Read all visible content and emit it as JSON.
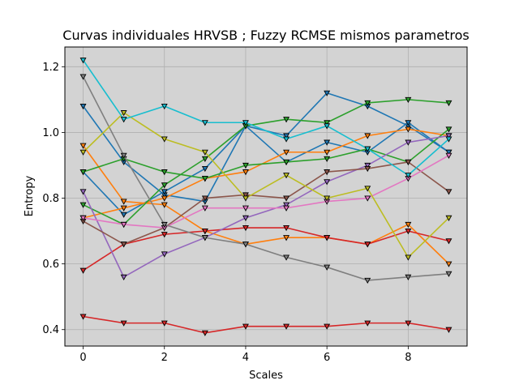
{
  "chart_data": {
    "type": "line",
    "title": "Curvas individuales HRVSB ; Fuzzy RCMSE mismos parametros",
    "xlabel": "Scales",
    "ylabel": "Entropy",
    "x": [
      0,
      1,
      2,
      3,
      4,
      5,
      6,
      7,
      8,
      9
    ],
    "xlim": [
      -0.45,
      9.45
    ],
    "ylim": [
      0.35,
      1.26
    ],
    "xticks": [
      0,
      2,
      4,
      6,
      8
    ],
    "yticks": [
      0.4,
      0.6,
      0.8,
      1.0,
      1.2
    ],
    "grid": true,
    "plot_background": "#d3d3d3",
    "marker": "triangle-down",
    "series": [
      {
        "color": "#1f77b4",
        "values": [
          1.08,
          0.91,
          0.81,
          0.79,
          1.02,
          0.99,
          1.12,
          1.08,
          1.02,
          0.94
        ]
      },
      {
        "color": "#1f77b4",
        "values": [
          0.88,
          0.75,
          0.82,
          0.89,
          1.02,
          0.91,
          0.97,
          0.94,
          1.03,
          0.94
        ]
      },
      {
        "color": "#ff7f0e",
        "values": [
          0.96,
          0.79,
          0.78,
          0.7,
          0.66,
          0.68,
          0.68,
          0.66,
          0.72,
          0.6
        ]
      },
      {
        "color": "#ff7f0e",
        "values": [
          0.74,
          0.77,
          0.8,
          0.86,
          0.88,
          0.94,
          0.94,
          0.99,
          1.01,
          0.99
        ]
      },
      {
        "color": "#2ca02c",
        "values": [
          0.88,
          0.92,
          0.88,
          0.86,
          0.9,
          0.91,
          0.92,
          0.95,
          0.91,
          1.01
        ]
      },
      {
        "color": "#2ca02c",
        "values": [
          0.78,
          0.72,
          0.84,
          0.92,
          1.02,
          1.04,
          1.03,
          1.09,
          1.1,
          1.09
        ]
      },
      {
        "color": "#d62728",
        "values": [
          0.58,
          0.66,
          0.69,
          0.7,
          0.71,
          0.71,
          0.68,
          0.66,
          0.7,
          0.67
        ]
      },
      {
        "color": "#d62728",
        "values": [
          0.44,
          0.42,
          0.42,
          0.39,
          0.41,
          0.41,
          0.41,
          0.42,
          0.42,
          0.4
        ]
      },
      {
        "color": "#9467bd",
        "values": [
          0.82,
          0.56,
          0.63,
          0.68,
          0.74,
          0.78,
          0.85,
          0.9,
          0.97,
          0.99
        ]
      },
      {
        "color": "#8c564b",
        "values": [
          0.73,
          0.66,
          0.71,
          0.8,
          0.81,
          0.8,
          0.88,
          0.89,
          0.91,
          0.82
        ]
      },
      {
        "color": "#e377c2",
        "values": [
          0.74,
          0.72,
          0.71,
          0.77,
          0.77,
          0.77,
          0.79,
          0.8,
          0.86,
          0.93
        ]
      },
      {
        "color": "#7f7f7f",
        "values": [
          1.17,
          0.93,
          0.72,
          0.68,
          0.66,
          0.62,
          0.59,
          0.55,
          0.56,
          0.57
        ]
      },
      {
        "color": "#bcbd22",
        "values": [
          0.94,
          1.06,
          0.98,
          0.94,
          0.8,
          0.87,
          0.8,
          0.83,
          0.62,
          0.74
        ]
      },
      {
        "color": "#17becf",
        "values": [
          1.22,
          1.04,
          1.08,
          1.03,
          1.03,
          0.98,
          1.02,
          0.95,
          0.87,
          0.98
        ]
      }
    ]
  }
}
